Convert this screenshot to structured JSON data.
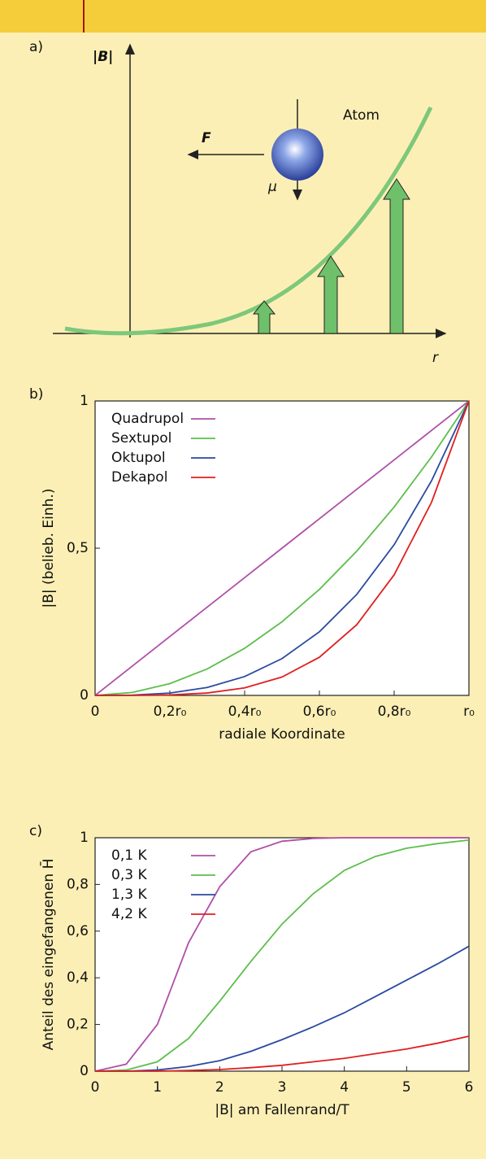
{
  "panel_a": {
    "label": "a)",
    "y_axis": "|B|",
    "atom": "Atom",
    "force": "F",
    "moment": "μ",
    "x_axis": "r"
  },
  "chart_data": [
    {
      "type": "line",
      "panel_label": "b)",
      "xlabel": "radiale Koordinate",
      "ylabel": "|B|  (belieb. Einh.)",
      "x": [
        0,
        0.1,
        0.2,
        0.3,
        0.4,
        0.5,
        0.6,
        0.7,
        0.8,
        0.9,
        1
      ],
      "series": [
        {
          "name": "Quadrupol",
          "color": "#b04fa8",
          "values": [
            0,
            0.1,
            0.2,
            0.3,
            0.4,
            0.5,
            0.6,
            0.7,
            0.8,
            0.9,
            1
          ]
        },
        {
          "name": "Sextupol",
          "color": "#5cbf4a",
          "values": [
            0,
            0.01,
            0.04,
            0.09,
            0.16,
            0.25,
            0.36,
            0.49,
            0.64,
            0.81,
            1
          ]
        },
        {
          "name": "Oktupol",
          "color": "#2a4aa0",
          "values": [
            0,
            0.001,
            0.008,
            0.027,
            0.064,
            0.125,
            0.216,
            0.343,
            0.512,
            0.729,
            1
          ]
        },
        {
          "name": "Dekapol",
          "color": "#e02020",
          "values": [
            0,
            0.0001,
            0.0016,
            0.0081,
            0.0256,
            0.0625,
            0.1296,
            0.2401,
            0.4096,
            0.6561,
            1
          ]
        }
      ],
      "xlim": [
        0,
        1
      ],
      "ylim": [
        0,
        1
      ],
      "xticks": [
        0,
        {
          "value": 0.2,
          "label": "0,2r₀"
        },
        {
          "value": 0.4,
          "label": "0,4r₀"
        },
        {
          "value": 0.6,
          "label": "0,6r₀"
        },
        {
          "value": 0.8,
          "label": "0,8r₀"
        },
        {
          "value": 1,
          "label": "r₀"
        }
      ],
      "yticks": [
        0,
        {
          "value": 0.5,
          "label": "0,5"
        },
        1
      ],
      "legend": "upper left"
    },
    {
      "type": "line",
      "panel_label": "c)",
      "xlabel": "|B| am Fallenrand/T",
      "ylabel": "Anteil des eingefangenen H̄",
      "x": [
        0,
        0.5,
        1,
        1.5,
        2,
        2.5,
        3,
        3.5,
        4,
        4.5,
        5,
        5.5,
        6
      ],
      "series": [
        {
          "name": "0,1 K",
          "color": "#b04fa8",
          "values": [
            0,
            0.03,
            0.2,
            0.55,
            0.79,
            0.94,
            0.985,
            0.997,
            1,
            1,
            1,
            1,
            1
          ]
        },
        {
          "name": "0,3 K",
          "color": "#5cbf4a",
          "values": [
            0,
            0.005,
            0.04,
            0.14,
            0.3,
            0.47,
            0.63,
            0.76,
            0.86,
            0.92,
            0.955,
            0.975,
            0.99
          ]
        },
        {
          "name": "1,3 K",
          "color": "#2a4aa0",
          "values": [
            0,
            0,
            0.005,
            0.02,
            0.045,
            0.085,
            0.135,
            0.19,
            0.25,
            0.32,
            0.39,
            0.46,
            0.535
          ]
        },
        {
          "name": "4,2 K",
          "color": "#e02020",
          "values": [
            0,
            0,
            0,
            0.003,
            0.007,
            0.015,
            0.025,
            0.04,
            0.055,
            0.075,
            0.095,
            0.12,
            0.15
          ]
        }
      ],
      "xlim": [
        0,
        6
      ],
      "ylim": [
        0,
        1
      ],
      "xticks": [
        0,
        1,
        2,
        3,
        4,
        5,
        6
      ],
      "yticks": [
        0,
        {
          "value": 0.2,
          "label": "0,2"
        },
        {
          "value": 0.4,
          "label": "0,4"
        },
        {
          "value": 0.6,
          "label": "0,6"
        },
        {
          "value": 0.8,
          "label": "0,8"
        },
        1
      ],
      "legend": "upper left"
    }
  ]
}
